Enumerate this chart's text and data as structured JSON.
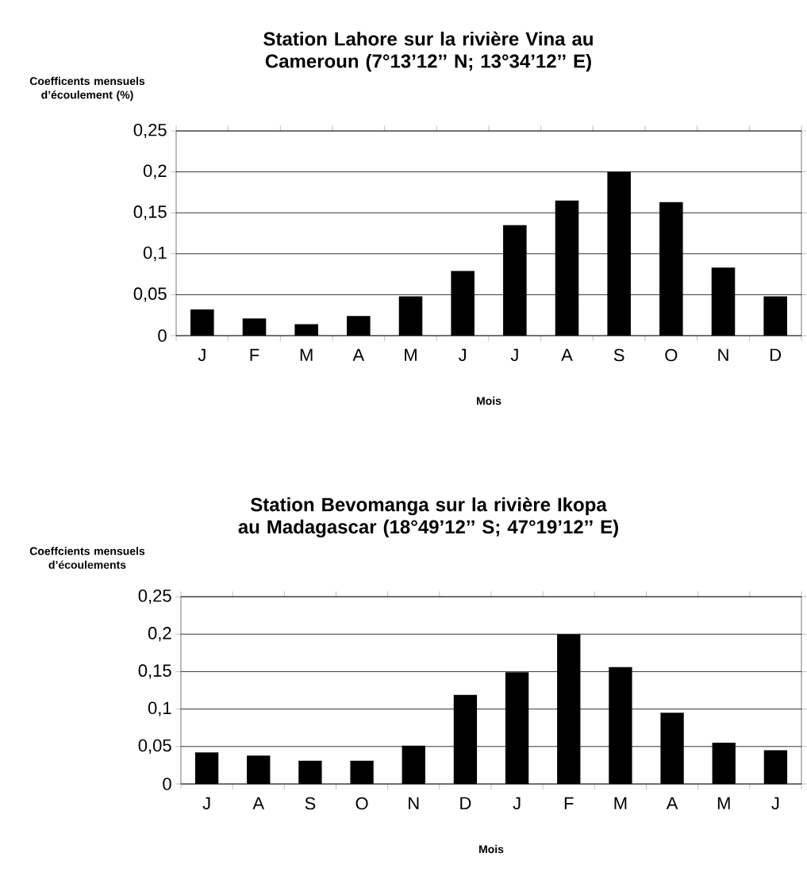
{
  "chart_data": [
    {
      "type": "bar",
      "title": "Station Lahore sur la rivière Vina au Cameroun (7°13’12’’ N; 13°34’12’’ E)",
      "ylabel": "Coefficents mensuels d’écoulement (%)",
      "xlabel": "Mois",
      "categories": [
        "J",
        "F",
        "M",
        "A",
        "M",
        "J",
        "J",
        "A",
        "S",
        "O",
        "N",
        "D"
      ],
      "values": [
        0.032,
        0.021,
        0.014,
        0.024,
        0.048,
        0.079,
        0.135,
        0.165,
        0.2,
        0.163,
        0.083,
        0.048
      ],
      "color": "#000000",
      "ylim": [
        0,
        0.25
      ],
      "yticks": [
        {
          "value": 0,
          "label": "0"
        },
        {
          "value": 0.05,
          "label": "0,05"
        },
        {
          "value": 0.1,
          "label": "0,1"
        },
        {
          "value": 0.15,
          "label": "0,15"
        },
        {
          "value": 0.2,
          "label": "0,2"
        },
        {
          "value": 0.25,
          "label": "0,25"
        }
      ],
      "grid": "y"
    },
    {
      "type": "bar",
      "title": "Station Bevomanga sur la rivière Ikopa au Madagascar (18°49’12’’ S; 47°19’12’’ E)",
      "ylabel": "Coeffcients mensuels d’écoulements",
      "xlabel": "Mois",
      "categories": [
        "J",
        "A",
        "S",
        "O",
        "N",
        "D",
        "J",
        "F",
        "M",
        "A",
        "M",
        "J"
      ],
      "values": [
        0.042,
        0.038,
        0.031,
        0.031,
        0.051,
        0.119,
        0.149,
        0.2,
        0.156,
        0.095,
        0.055,
        0.045
      ],
      "color": "#000000",
      "ylim": [
        0,
        0.25
      ],
      "yticks": [
        {
          "value": 0,
          "label": "0"
        },
        {
          "value": 0.05,
          "label": "0,05"
        },
        {
          "value": 0.1,
          "label": "0,1"
        },
        {
          "value": 0.15,
          "label": "0,15"
        },
        {
          "value": 0.2,
          "label": "0,2"
        },
        {
          "value": 0.25,
          "label": "0,25"
        }
      ],
      "grid": "y"
    }
  ]
}
